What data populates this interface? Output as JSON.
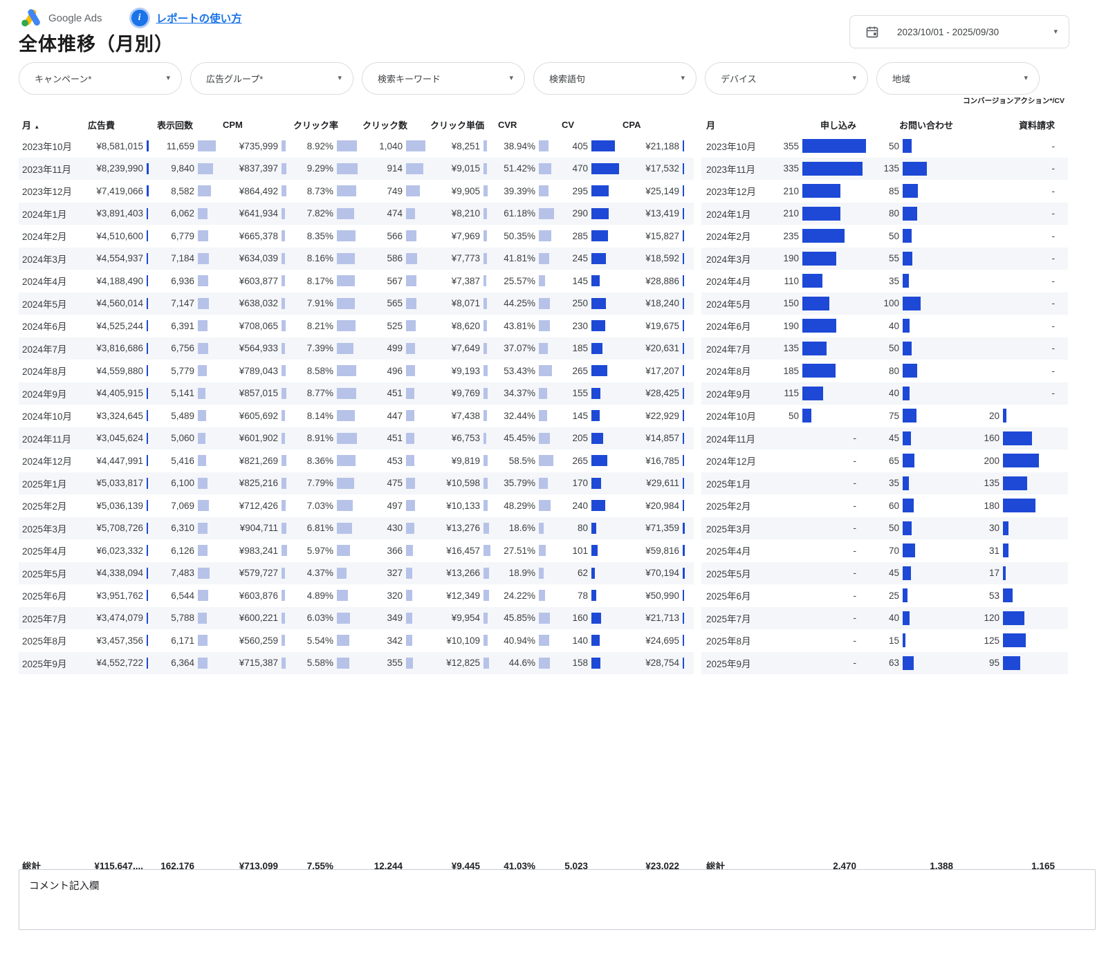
{
  "header": {
    "app_name": "Google Ads",
    "info_icon": "i",
    "help_link": "レポートの使い方",
    "title": "全体推移（月別）",
    "date_range": "2023/10/01 - 2025/09/30"
  },
  "filters": {
    "items": [
      {
        "label": "キャンペーン*"
      },
      {
        "label": "広告グループ*"
      },
      {
        "label": "検索キーワード"
      },
      {
        "label": "検索語句"
      },
      {
        "label": "デバイス"
      },
      {
        "label": "地域"
      }
    ]
  },
  "conversion_note": "コンバージョンアクション*/CV",
  "left_table": {
    "columns": [
      "月",
      "広告費",
      "表示回数",
      "CPM",
      "クリック率",
      "クリック数",
      "クリック単価",
      "CVR",
      "CV",
      "CPA"
    ],
    "sort_arrow": "▴",
    "rows": [
      [
        "2023年10月",
        "¥8,581,015",
        "11,659",
        "¥735,999",
        "8.92%",
        "1,040",
        "¥8,251",
        "38.94%",
        "405",
        "¥21,188"
      ],
      [
        "2023年11月",
        "¥8,239,990",
        "9,840",
        "¥837,397",
        "9.29%",
        "914",
        "¥9,015",
        "51.42%",
        "470",
        "¥17,532"
      ],
      [
        "2023年12月",
        "¥7,419,066",
        "8,582",
        "¥864,492",
        "8.73%",
        "749",
        "¥9,905",
        "39.39%",
        "295",
        "¥25,149"
      ],
      [
        "2024年1月",
        "¥3,891,403",
        "6,062",
        "¥641,934",
        "7.82%",
        "474",
        "¥8,210",
        "61.18%",
        "290",
        "¥13,419"
      ],
      [
        "2024年2月",
        "¥4,510,600",
        "6,779",
        "¥665,378",
        "8.35%",
        "566",
        "¥7,969",
        "50.35%",
        "285",
        "¥15,827"
      ],
      [
        "2024年3月",
        "¥4,554,937",
        "7,184",
        "¥634,039",
        "8.16%",
        "586",
        "¥7,773",
        "41.81%",
        "245",
        "¥18,592"
      ],
      [
        "2024年4月",
        "¥4,188,490",
        "6,936",
        "¥603,877",
        "8.17%",
        "567",
        "¥7,387",
        "25.57%",
        "145",
        "¥28,886"
      ],
      [
        "2024年5月",
        "¥4,560,014",
        "7,147",
        "¥638,032",
        "7.91%",
        "565",
        "¥8,071",
        "44.25%",
        "250",
        "¥18,240"
      ],
      [
        "2024年6月",
        "¥4,525,244",
        "6,391",
        "¥708,065",
        "8.21%",
        "525",
        "¥8,620",
        "43.81%",
        "230",
        "¥19,675"
      ],
      [
        "2024年7月",
        "¥3,816,686",
        "6,756",
        "¥564,933",
        "7.39%",
        "499",
        "¥7,649",
        "37.07%",
        "185",
        "¥20,631"
      ],
      [
        "2024年8月",
        "¥4,559,880",
        "5,779",
        "¥789,043",
        "8.58%",
        "496",
        "¥9,193",
        "53.43%",
        "265",
        "¥17,207"
      ],
      [
        "2024年9月",
        "¥4,405,915",
        "5,141",
        "¥857,015",
        "8.77%",
        "451",
        "¥9,769",
        "34.37%",
        "155",
        "¥28,425"
      ],
      [
        "2024年10月",
        "¥3,324,645",
        "5,489",
        "¥605,692",
        "8.14%",
        "447",
        "¥7,438",
        "32.44%",
        "145",
        "¥22,929"
      ],
      [
        "2024年11月",
        "¥3,045,624",
        "5,060",
        "¥601,902",
        "8.91%",
        "451",
        "¥6,753",
        "45.45%",
        "205",
        "¥14,857"
      ],
      [
        "2024年12月",
        "¥4,447,991",
        "5,416",
        "¥821,269",
        "8.36%",
        "453",
        "¥9,819",
        "58.5%",
        "265",
        "¥16,785"
      ],
      [
        "2025年1月",
        "¥5,033,817",
        "6,100",
        "¥825,216",
        "7.79%",
        "475",
        "¥10,598",
        "35.79%",
        "170",
        "¥29,611"
      ],
      [
        "2025年2月",
        "¥5,036,139",
        "7,069",
        "¥712,426",
        "7.03%",
        "497",
        "¥10,133",
        "48.29%",
        "240",
        "¥20,984"
      ],
      [
        "2025年3月",
        "¥5,708,726",
        "6,310",
        "¥904,711",
        "6.81%",
        "430",
        "¥13,276",
        "18.6%",
        "80",
        "¥71,359"
      ],
      [
        "2025年4月",
        "¥6,023,332",
        "6,126",
        "¥983,241",
        "5.97%",
        "366",
        "¥16,457",
        "27.51%",
        "101",
        "¥59,816"
      ],
      [
        "2025年5月",
        "¥4,338,094",
        "7,483",
        "¥579,727",
        "4.37%",
        "327",
        "¥13,266",
        "18.9%",
        "62",
        "¥70,194"
      ],
      [
        "2025年6月",
        "¥3,951,762",
        "6,544",
        "¥603,876",
        "4.89%",
        "320",
        "¥12,349",
        "24.22%",
        "78",
        "¥50,990"
      ],
      [
        "2025年7月",
        "¥3,474,079",
        "5,788",
        "¥600,221",
        "6.03%",
        "349",
        "¥9,954",
        "45.85%",
        "160",
        "¥21,713"
      ],
      [
        "2025年8月",
        "¥3,457,356",
        "6,171",
        "¥560,259",
        "5.54%",
        "342",
        "¥10,109",
        "40.94%",
        "140",
        "¥24,695"
      ],
      [
        "2025年9月",
        "¥4,552,722",
        "6,364",
        "¥715,387",
        "5.58%",
        "355",
        "¥12,825",
        "44.6%",
        "158",
        "¥28,754"
      ]
    ],
    "total": [
      "総計",
      "¥115,647,...",
      "162,176",
      "¥713,099",
      "7.55%",
      "12,244",
      "¥9,445",
      "41.03%",
      "5,023",
      "¥23,022"
    ]
  },
  "right_table": {
    "columns": [
      "月",
      "申し込み",
      "お問い合わせ",
      "資料請求"
    ],
    "rows": [
      [
        "2023年10月",
        "355",
        "50",
        "-"
      ],
      [
        "2023年11月",
        "335",
        "135",
        "-"
      ],
      [
        "2023年12月",
        "210",
        "85",
        "-"
      ],
      [
        "2024年1月",
        "210",
        "80",
        "-"
      ],
      [
        "2024年2月",
        "235",
        "50",
        "-"
      ],
      [
        "2024年3月",
        "190",
        "55",
        "-"
      ],
      [
        "2024年4月",
        "110",
        "35",
        "-"
      ],
      [
        "2024年5月",
        "150",
        "100",
        "-"
      ],
      [
        "2024年6月",
        "190",
        "40",
        "-"
      ],
      [
        "2024年7月",
        "135",
        "50",
        "-"
      ],
      [
        "2024年8月",
        "185",
        "80",
        "-"
      ],
      [
        "2024年9月",
        "115",
        "40",
        "-"
      ],
      [
        "2024年10月",
        "50",
        "75",
        "20"
      ],
      [
        "2024年11月",
        "-",
        "45",
        "160"
      ],
      [
        "2024年12月",
        "-",
        "65",
        "200"
      ],
      [
        "2025年1月",
        "-",
        "35",
        "135"
      ],
      [
        "2025年2月",
        "-",
        "60",
        "180"
      ],
      [
        "2025年3月",
        "-",
        "50",
        "30"
      ],
      [
        "2025年4月",
        "-",
        "70",
        "31"
      ],
      [
        "2025年5月",
        "-",
        "45",
        "17"
      ],
      [
        "2025年6月",
        "-",
        "25",
        "53"
      ],
      [
        "2025年7月",
        "-",
        "40",
        "120"
      ],
      [
        "2025年8月",
        "-",
        "15",
        "125"
      ],
      [
        "2025年9月",
        "-",
        "63",
        "95"
      ]
    ],
    "total": [
      "総計",
      "2,470",
      "1,388",
      "1,165"
    ]
  },
  "comment": {
    "label": "コメント記入欄"
  },
  "colors": {
    "bar_light": "#b6c2e8",
    "bar_dark": "#1d49d6",
    "accent_blue": "#1a73e8",
    "stripe": "#f4f6f9"
  }
}
